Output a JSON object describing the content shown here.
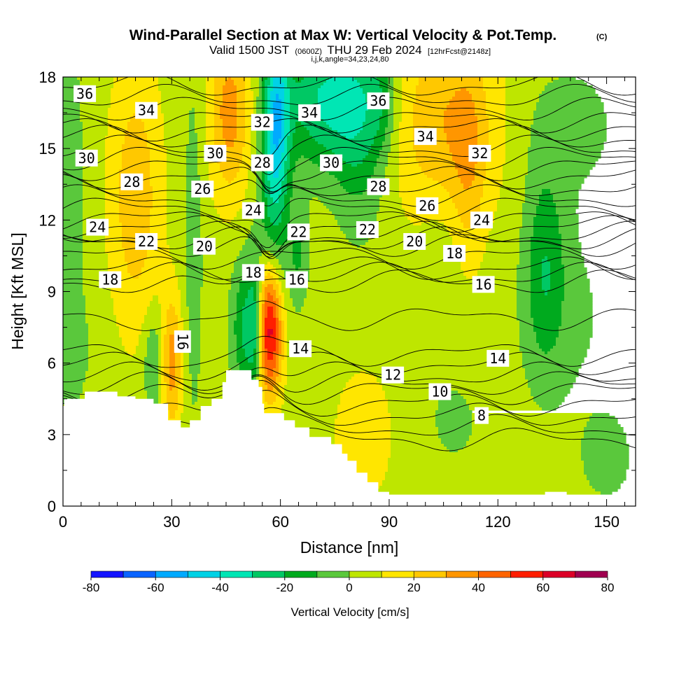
{
  "chart_data": {
    "type": "heatmap",
    "title": "Wind-Parallel Section at Max W: Vertical Velocity & Pot.Temp.",
    "title_mark": "(C)",
    "subtitle_parts": [
      "Valid 1500 JST",
      "(0600Z)",
      "THU 29 Feb 2024",
      "[12hrFcst@2148z]"
    ],
    "subtitle2": "i,j,k,angle=34,23,24,80",
    "xlabel": "Distance [nm]",
    "ylabel": "Height [Kft MSL]",
    "xlim": [
      0,
      158
    ],
    "ylim": [
      0,
      18
    ],
    "xticks": [
      0,
      30,
      60,
      90,
      120,
      150
    ],
    "yticks": [
      0,
      3,
      6,
      9,
      12,
      15,
      18
    ],
    "colorbar": {
      "title": "Vertical Velocity [cm/s]",
      "bounds": [
        -80,
        -70,
        -60,
        -50,
        -40,
        -30,
        -20,
        -10,
        0,
        10,
        20,
        30,
        40,
        50,
        60,
        70,
        80
      ],
      "colors": [
        "#1414ff",
        "#0a64ff",
        "#00aaff",
        "#00d2e6",
        "#00e6b4",
        "#00c864",
        "#00aa1e",
        "#5ac83c",
        "#bee600",
        "#ffe600",
        "#ffc800",
        "#ff9600",
        "#ff6400",
        "#ff1e00",
        "#dc0028",
        "#a00050",
        "#640078"
      ],
      "labels": [
        -80,
        -60,
        -40,
        -20,
        0,
        20,
        40,
        60,
        80
      ]
    },
    "wfield": {
      "background": 5,
      "blobs": [
        {
          "x": 2,
          "y": 12,
          "sx": 2.5,
          "sy": 5,
          "w": -15
        },
        {
          "x": 4,
          "y": 6.5,
          "sx": 5,
          "sy": 1.5,
          "w": -5
        },
        {
          "x": 20,
          "y": 13,
          "sx": 5,
          "sy": 4,
          "w": 22
        },
        {
          "x": 25,
          "y": 6,
          "sx": 2,
          "sy": 1.5,
          "w": -18
        },
        {
          "x": 30,
          "y": 6,
          "sx": 2,
          "sy": 2,
          "w": 30
        },
        {
          "x": 36,
          "y": 11,
          "sx": 2,
          "sy": 6,
          "w": -10
        },
        {
          "x": 46,
          "y": 16.5,
          "sx": 4,
          "sy": 2.5,
          "w": 30
        },
        {
          "x": 51,
          "y": 7.5,
          "sx": 3,
          "sy": 2,
          "w": -30
        },
        {
          "x": 53,
          "y": 7.5,
          "sx": 1.2,
          "sy": 1.8,
          "w": -20
        },
        {
          "x": 57,
          "y": 7.5,
          "sx": 2.5,
          "sy": 2,
          "w": 70
        },
        {
          "x": 58,
          "y": 12,
          "sx": 3,
          "sy": 3.5,
          "w": -25
        },
        {
          "x": 59,
          "y": 16.5,
          "sx": 2.5,
          "sy": 2.5,
          "w": -40
        },
        {
          "x": 65,
          "y": 10.5,
          "sx": 2,
          "sy": 1.5,
          "w": -15
        },
        {
          "x": 72,
          "y": 17,
          "sx": 8,
          "sy": 2,
          "w": -35
        },
        {
          "x": 82,
          "y": 16,
          "sx": 5,
          "sy": 3,
          "w": -22
        },
        {
          "x": 88,
          "y": 17,
          "sx": 3,
          "sy": 1.5,
          "w": -15
        },
        {
          "x": 106,
          "y": 16,
          "sx": 10,
          "sy": 3,
          "w": 25
        },
        {
          "x": 112,
          "y": 14,
          "sx": 3,
          "sy": 3,
          "w": 12
        },
        {
          "x": 104,
          "y": 10.5,
          "sx": 4,
          "sy": 2.5,
          "w": -6
        },
        {
          "x": 108,
          "y": 3.5,
          "sx": 8,
          "sy": 2,
          "w": -6
        },
        {
          "x": 133,
          "y": 10,
          "sx": 4,
          "sy": 3,
          "w": -22
        },
        {
          "x": 140,
          "y": 8,
          "sx": 10,
          "sy": 3,
          "w": -6
        },
        {
          "x": 150,
          "y": 2,
          "sx": 6,
          "sy": 1.5,
          "w": -8
        },
        {
          "x": 83,
          "y": 3,
          "sx": 6,
          "sy": 2,
          "w": 12
        },
        {
          "x": 140,
          "y": 16,
          "sx": 10,
          "sy": 2,
          "w": -8
        }
      ]
    },
    "contour_labels": [
      {
        "text": "36",
        "x": 6,
        "y": 17.3
      },
      {
        "text": "34",
        "x": 23,
        "y": 16.6
      },
      {
        "text": "32",
        "x": 55,
        "y": 16.1
      },
      {
        "text": "34",
        "x": 68,
        "y": 16.5
      },
      {
        "text": "36",
        "x": 87,
        "y": 17
      },
      {
        "text": "34",
        "x": 100,
        "y": 15.5
      },
      {
        "text": "32",
        "x": 115,
        "y": 14.8
      },
      {
        "text": "30",
        "x": 6.5,
        "y": 14.6
      },
      {
        "text": "30",
        "x": 42,
        "y": 14.8
      },
      {
        "text": "28",
        "x": 55,
        "y": 14.4
      },
      {
        "text": "30",
        "x": 74,
        "y": 14.4
      },
      {
        "text": "28",
        "x": 19,
        "y": 13.6
      },
      {
        "text": "26",
        "x": 38.5,
        "y": 13.3
      },
      {
        "text": "28",
        "x": 87,
        "y": 13.4
      },
      {
        "text": "26",
        "x": 100.5,
        "y": 12.6
      },
      {
        "text": "24",
        "x": 52.5,
        "y": 12.4
      },
      {
        "text": "24",
        "x": 115.5,
        "y": 12
      },
      {
        "text": "24",
        "x": 9.5,
        "y": 11.7
      },
      {
        "text": "22",
        "x": 23,
        "y": 11.1
      },
      {
        "text": "20",
        "x": 39,
        "y": 10.9
      },
      {
        "text": "22",
        "x": 65,
        "y": 11.5
      },
      {
        "text": "22",
        "x": 84,
        "y": 11.6
      },
      {
        "text": "20",
        "x": 97,
        "y": 11.1
      },
      {
        "text": "18",
        "x": 108,
        "y": 10.6
      },
      {
        "text": "18",
        "x": 52.5,
        "y": 9.8
      },
      {
        "text": "16",
        "x": 64.5,
        "y": 9.5
      },
      {
        "text": "18",
        "x": 13,
        "y": 9.5
      },
      {
        "text": "16",
        "x": 116,
        "y": 9.3
      },
      {
        "text": "16",
        "x": 33,
        "y": 6.9,
        "vertical": true
      },
      {
        "text": "14",
        "x": 65.5,
        "y": 6.6
      },
      {
        "text": "14",
        "x": 120,
        "y": 6.2
      },
      {
        "text": "12",
        "x": 91,
        "y": 5.5
      },
      {
        "text": "10",
        "x": 104,
        "y": 4.8
      },
      {
        "text": "8",
        "x": 115.5,
        "y": 3.8
      }
    ]
  }
}
